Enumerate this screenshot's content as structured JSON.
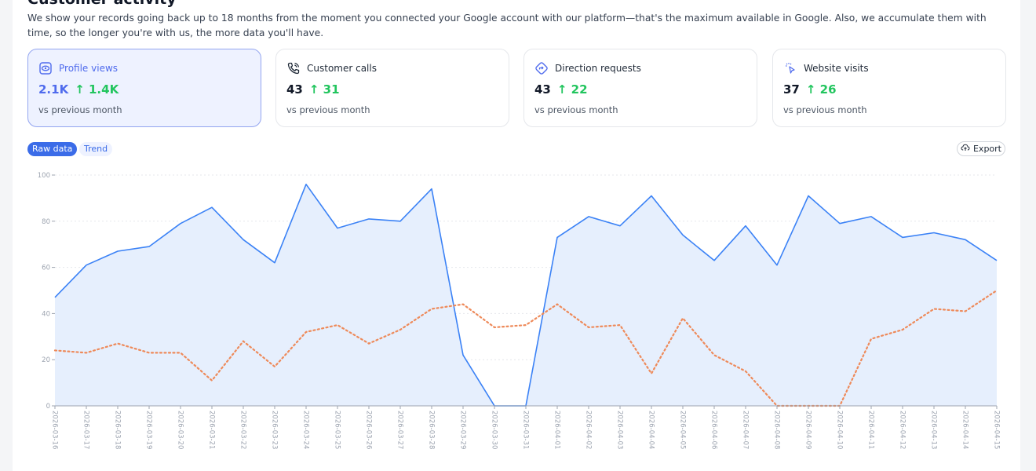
{
  "header": {
    "title": "Customer activity",
    "description": "We show your records going back up to 18 months from the moment you connected your Google account with our platform—that's the maximum available in Google. Also, we accumulate them with time, so the longer you're with us, the more data you'll have."
  },
  "cards": [
    {
      "label": "Profile views",
      "value": "2.1K",
      "delta": "↑ 1.4K",
      "sub": "vs previous month",
      "icon": "eye-icon",
      "active": true
    },
    {
      "label": "Customer calls",
      "value": "43",
      "delta": "↑ 31",
      "sub": "vs previous month",
      "icon": "phone-icon",
      "active": false
    },
    {
      "label": "Direction requests",
      "value": "43",
      "delta": "↑ 22",
      "sub": "vs previous month",
      "icon": "direction-icon",
      "active": false
    },
    {
      "label": "Website visits",
      "value": "37",
      "delta": "↑ 26",
      "sub": "vs previous month",
      "icon": "cursor-click-icon",
      "active": false
    }
  ],
  "controls": {
    "raw_label": "Raw data",
    "trend_label": "Trend",
    "export_label": "Export"
  },
  "colors": {
    "accent": "#4f6bed",
    "positive": "#22c55e",
    "line": "#3b82f6",
    "area": "#e6effd",
    "dotted": "#ee8a5a"
  },
  "chart_data": {
    "type": "area",
    "x": [
      "2026-03-16",
      "2026-03-17",
      "2026-03-18",
      "2026-03-19",
      "2026-03-20",
      "2026-03-21",
      "2026-03-22",
      "2026-03-23",
      "2026-03-24",
      "2026-03-25",
      "2026-03-26",
      "2026-03-27",
      "2026-03-28",
      "2026-03-29",
      "2026-03-30",
      "2026-03-31",
      "2026-04-01",
      "2026-04-02",
      "2026-04-03",
      "2026-04-04",
      "2026-04-05",
      "2026-04-06",
      "2026-04-07",
      "2026-04-08",
      "2026-04-09",
      "2026-04-10",
      "2026-04-11",
      "2026-04-12",
      "2026-04-13",
      "2026-04-14",
      "2026-04-15"
    ],
    "series": [
      {
        "values": [
          47,
          61,
          67,
          69,
          79,
          86,
          72,
          62,
          96,
          77,
          81,
          80,
          94,
          22,
          0,
          0,
          73,
          82,
          78,
          91,
          74,
          63,
          78,
          61,
          91,
          79,
          82,
          73,
          75,
          72,
          63
        ],
        "style": "solid-area"
      },
      {
        "values": [
          24,
          23,
          27,
          23,
          23,
          11,
          28,
          17,
          32,
          35,
          27,
          33,
          42,
          44,
          34,
          35,
          44,
          34,
          35,
          14,
          38,
          22,
          15,
          0,
          0,
          0,
          29,
          33,
          42,
          41,
          50
        ],
        "style": "dotted"
      }
    ],
    "yticks": [
      0,
      20,
      40,
      60,
      80,
      100
    ],
    "ylim": [
      0,
      100
    ],
    "grid": true
  }
}
